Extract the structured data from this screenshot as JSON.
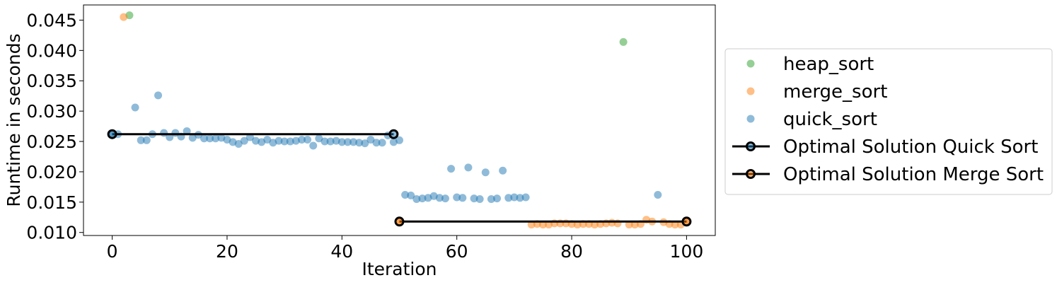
{
  "chart_data": {
    "type": "scatter",
    "xlabel": "Iteration",
    "ylabel": "Runtime in seconds",
    "xlim": [
      -5,
      105
    ],
    "ylim": [
      0.0095,
      0.0475
    ],
    "xticks": [
      0,
      20,
      40,
      60,
      80,
      100
    ],
    "xtick_labels": [
      "0",
      "20",
      "40",
      "60",
      "80",
      "100"
    ],
    "yticks": [
      0.01,
      0.015,
      0.02,
      0.025,
      0.03,
      0.035,
      0.04,
      0.045
    ],
    "ytick_labels": [
      "0.010",
      "0.015",
      "0.020",
      "0.025",
      "0.030",
      "0.035",
      "0.040",
      "0.045"
    ],
    "grid": false,
    "legend_position": "right, outside plot",
    "series": [
      {
        "name": "heap_sort",
        "kind": "scatter",
        "color": "#2ca02c",
        "x": [
          3,
          89
        ],
        "y": [
          0.0458,
          0.0414
        ]
      },
      {
        "name": "merge_sort",
        "kind": "scatter",
        "color": "#ff7f0e",
        "x": [
          2,
          50,
          73,
          74,
          75,
          76,
          77,
          78,
          79,
          80,
          81,
          82,
          83,
          84,
          85,
          86,
          87,
          88,
          90,
          91,
          92,
          93,
          94,
          96,
          97,
          98,
          99,
          100
        ],
        "y": [
          0.0455,
          0.0118,
          0.0113,
          0.0114,
          0.0113,
          0.0113,
          0.0115,
          0.0115,
          0.0115,
          0.0114,
          0.0113,
          0.0114,
          0.0114,
          0.0113,
          0.0114,
          0.0115,
          0.0116,
          0.0115,
          0.0113,
          0.0113,
          0.0114,
          0.0121,
          0.0118,
          0.0117,
          0.0114,
          0.0113,
          0.0113,
          0.0119
        ]
      },
      {
        "name": "quick_sort",
        "kind": "scatter",
        "color": "#1f77b4",
        "x": [
          0,
          1,
          4,
          5,
          6,
          7,
          8,
          9,
          10,
          11,
          12,
          13,
          14,
          15,
          16,
          17,
          18,
          19,
          20,
          21,
          22,
          23,
          24,
          25,
          26,
          27,
          28,
          29,
          30,
          31,
          32,
          33,
          34,
          35,
          36,
          37,
          38,
          39,
          40,
          41,
          42,
          43,
          44,
          45,
          46,
          47,
          48,
          49,
          50,
          51,
          52,
          53,
          54,
          55,
          56,
          57,
          58,
          59,
          60,
          61,
          62,
          63,
          64,
          65,
          66,
          67,
          68,
          69,
          70,
          71,
          72,
          95
        ],
        "y": [
          0.0262,
          0.0262,
          0.0306,
          0.0252,
          0.0252,
          0.0262,
          0.0326,
          0.0264,
          0.0257,
          0.0264,
          0.0258,
          0.0267,
          0.0256,
          0.0261,
          0.0255,
          0.0255,
          0.0255,
          0.0256,
          0.0253,
          0.0249,
          0.0246,
          0.0251,
          0.0257,
          0.0251,
          0.0249,
          0.0253,
          0.0248,
          0.0251,
          0.025,
          0.025,
          0.0251,
          0.0253,
          0.0253,
          0.0243,
          0.0255,
          0.025,
          0.025,
          0.0251,
          0.0249,
          0.0249,
          0.0249,
          0.0248,
          0.0247,
          0.0253,
          0.0248,
          0.0248,
          0.026,
          0.0249,
          0.0252,
          0.0162,
          0.0161,
          0.0155,
          0.0156,
          0.0157,
          0.016,
          0.0157,
          0.0156,
          0.0205,
          0.0158,
          0.0157,
          0.0207,
          0.0156,
          0.0155,
          0.0199,
          0.0155,
          0.0156,
          0.0202,
          0.0157,
          0.0158,
          0.0157,
          0.0158,
          0.0162
        ]
      },
      {
        "name": "Optimal Solution Quick Sort",
        "kind": "line",
        "color": "#000000",
        "marker_face": "#1f77b4",
        "x": [
          0,
          49
        ],
        "y": [
          0.0262,
          0.0262
        ]
      },
      {
        "name": "Optimal Solution Merge Sort",
        "kind": "line",
        "color": "#000000",
        "marker_face": "#ff7f0e",
        "x": [
          50,
          100
        ],
        "y": [
          0.0118,
          0.0118
        ]
      }
    ]
  }
}
